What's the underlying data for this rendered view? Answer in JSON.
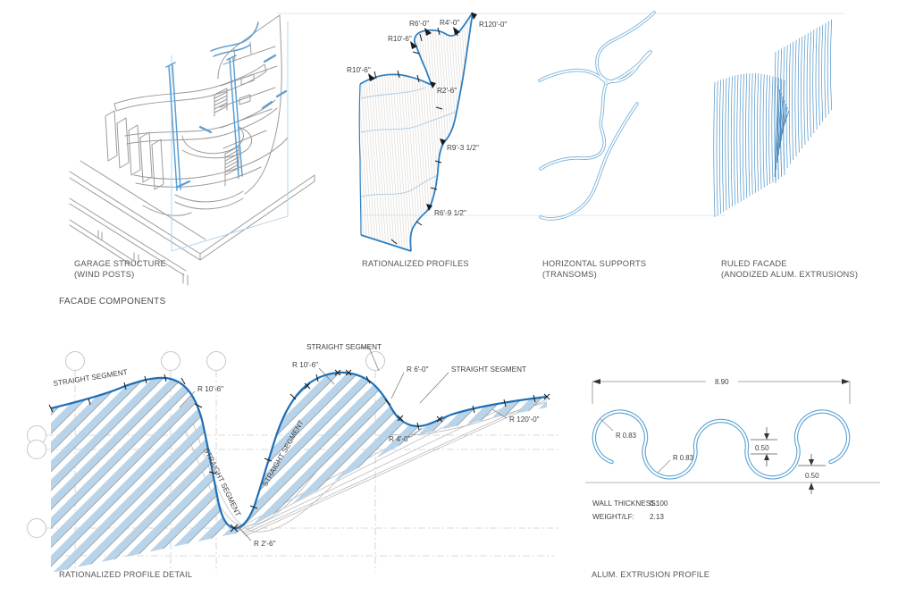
{
  "section": {
    "title": "FACADE COMPONENTS"
  },
  "panels": {
    "garage": {
      "caption1": "GARAGE STRUCTURE",
      "caption2": "(WIND POSTS)"
    },
    "profiles": {
      "caption1": "RATIONALIZED PROFILES",
      "caption2": "",
      "labels": {
        "r10_6_left": "R10'-6\"",
        "r10_6_top": "R10'-6\"",
        "r6_0": "R6'-0\"",
        "r4_0": "R4'-0\"",
        "r120_0": "R120'-0\"",
        "r2_6": "R2'-6\"",
        "r9_3": "R9'-3 1/2\"",
        "r6_9": "R6'-9 1/2\""
      }
    },
    "supports": {
      "caption1": "HORIZONTAL SUPPORTS",
      "caption2": "(TRANSOMS)"
    },
    "ruled": {
      "caption1": "RULED FACADE",
      "caption2": "(ANODIZED ALUM. EXTRUSIONS)"
    }
  },
  "detail": {
    "caption": "RATIONALIZED PROFILE DETAIL",
    "straight_segment": "STRAIGHT SEGMENT",
    "labels": {
      "r10_6_a": "R 10'-6\"",
      "r10_6_b": "R 10'-6\"",
      "r2_6": "R 2'-6\"",
      "r6_0": "R 6'-0\"",
      "r4_0": "R 4'-0\"",
      "r120_0": "R 120'-0\""
    }
  },
  "extrusion": {
    "caption": "ALUM. EXTRUSION PROFILE",
    "width_dim": "8.90",
    "r1": "R 0.83",
    "r2": "R 0.83",
    "neck_dim": "0.50",
    "end_dim": "0.50",
    "wall_label": "WALL THICKNESS:",
    "wall_value": "0.100",
    "weight_label": "WEIGHT/LF:",
    "weight_value": "2.13"
  },
  "colors": {
    "profile_blue": "#1e6fb5",
    "hatch_blue": "#b9d3e8",
    "tube_blue": "#79b2da",
    "ruled_blue": "#4a92c8",
    "sketch_gray": "#9b9b9b"
  }
}
